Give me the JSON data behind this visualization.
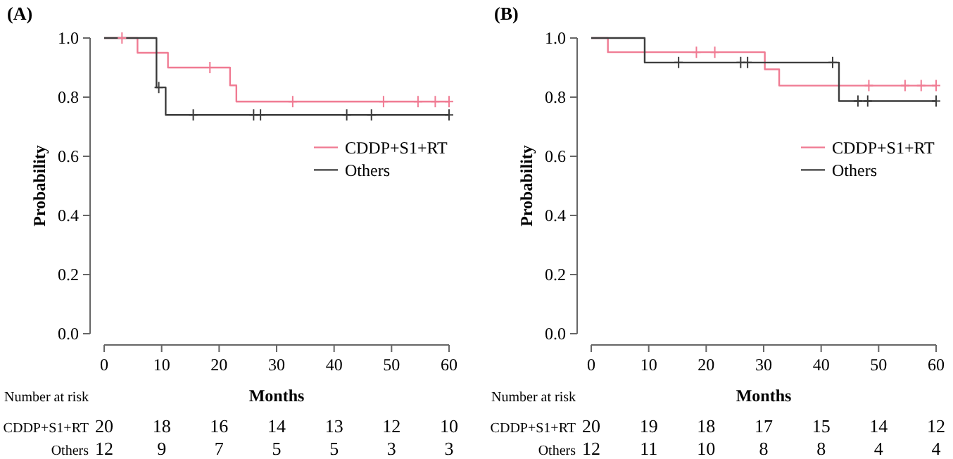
{
  "chart_data": [
    {
      "type": "step",
      "title": "(A)",
      "xlabel": "Months",
      "ylabel": "Probability",
      "legend": "right",
      "xlim": [
        0,
        60
      ],
      "xticks": [
        0,
        10,
        20,
        30,
        40,
        50,
        60
      ],
      "ylim": [
        0,
        1
      ],
      "yticks": [
        {
          "value": 0,
          "label": "0.0"
        },
        {
          "value": 0.2,
          "label": "0.2"
        },
        {
          "value": 0.4,
          "label": "0.4"
        },
        {
          "value": 0.6,
          "label": "0.6"
        },
        {
          "value": 0.8,
          "label": "0.8"
        },
        {
          "value": 1,
          "label": "1.0"
        }
      ],
      "series": [
        {
          "name": "CDDP+S1+RT",
          "color": "#f07b93",
          "x": [
            0,
            5.8,
            11.1,
            21.9,
            23,
            60
          ],
          "values": [
            1,
            0.95,
            0.9,
            0.84,
            0.785,
            0.785
          ]
        },
        {
          "name": "Others",
          "color": "#3c3c3c",
          "x": [
            0,
            9.1,
            10.7,
            60
          ],
          "values": [
            1,
            0.833,
            0.74,
            0.74
          ]
        },
        {
          "type": "scatter",
          "marker": "cross",
          "color": "#f07b93",
          "x": [
            3.1,
            18.4,
            32.8,
            48.6,
            54.6,
            57.6,
            60
          ],
          "values": [
            1,
            0.9,
            0.785,
            0.785,
            0.785,
            0.785,
            0.785
          ]
        },
        {
          "type": "scatter",
          "marker": "cross",
          "color": "#3c3c3c",
          "x": [
            9.5,
            15.5,
            26,
            27.2,
            42.2,
            46.5,
            60
          ],
          "values": [
            0.833,
            0.74,
            0.74,
            0.74,
            0.74,
            0.74,
            0.74
          ]
        }
      ],
      "annotations": [
        "Number at risk",
        "CDDP+S1+RT",
        "20",
        "18",
        "16",
        "14",
        "13",
        "12",
        "10",
        "Others",
        "12",
        "9",
        "7",
        "5",
        "5",
        "3",
        "3"
      ]
    },
    {
      "type": "step",
      "title": "(B)",
      "xlabel": "Months",
      "ylabel": "Probability",
      "legend": "right",
      "xlim": [
        0,
        60
      ],
      "xticks": [
        0,
        10,
        20,
        30,
        40,
        50,
        60
      ],
      "ylim": [
        0,
        1
      ],
      "yticks": [
        {
          "value": 0,
          "label": "0.0"
        },
        {
          "value": 0.2,
          "label": "0.2"
        },
        {
          "value": 0.4,
          "label": "0.4"
        },
        {
          "value": 0.6,
          "label": "0.6"
        },
        {
          "value": 0.8,
          "label": "0.8"
        },
        {
          "value": 1,
          "label": "1.0"
        }
      ],
      "series": [
        {
          "name": "CDDP+S1+RT",
          "color": "#f07b93",
          "x": [
            0,
            2.9,
            30.2,
            32.7,
            60
          ],
          "values": [
            1,
            0.952,
            0.894,
            0.839,
            0.839
          ]
        },
        {
          "name": "Others",
          "color": "#3c3c3c",
          "x": [
            0,
            9.3,
            43.1,
            60
          ],
          "values": [
            1,
            0.917,
            0.787,
            0.787
          ]
        },
        {
          "type": "scatter",
          "marker": "cross",
          "color": "#f07b93",
          "x": [
            18.3,
            21.5,
            48.3,
            54.6,
            57.4,
            60
          ],
          "values": [
            0.952,
            0.952,
            0.839,
            0.839,
            0.839,
            0.839
          ]
        },
        {
          "type": "scatter",
          "marker": "cross",
          "color": "#3c3c3c",
          "x": [
            15.2,
            26,
            27.2,
            42,
            46.4,
            48.1,
            60
          ],
          "values": [
            0.917,
            0.917,
            0.917,
            0.917,
            0.787,
            0.787,
            0.787
          ]
        }
      ],
      "annotations": [
        "Number at risk",
        "CDDP+S1+RT",
        "20",
        "19",
        "18",
        "17",
        "15",
        "14",
        "12",
        "Others",
        "12",
        "11",
        "10",
        "8",
        "8",
        "4",
        "4"
      ]
    }
  ]
}
